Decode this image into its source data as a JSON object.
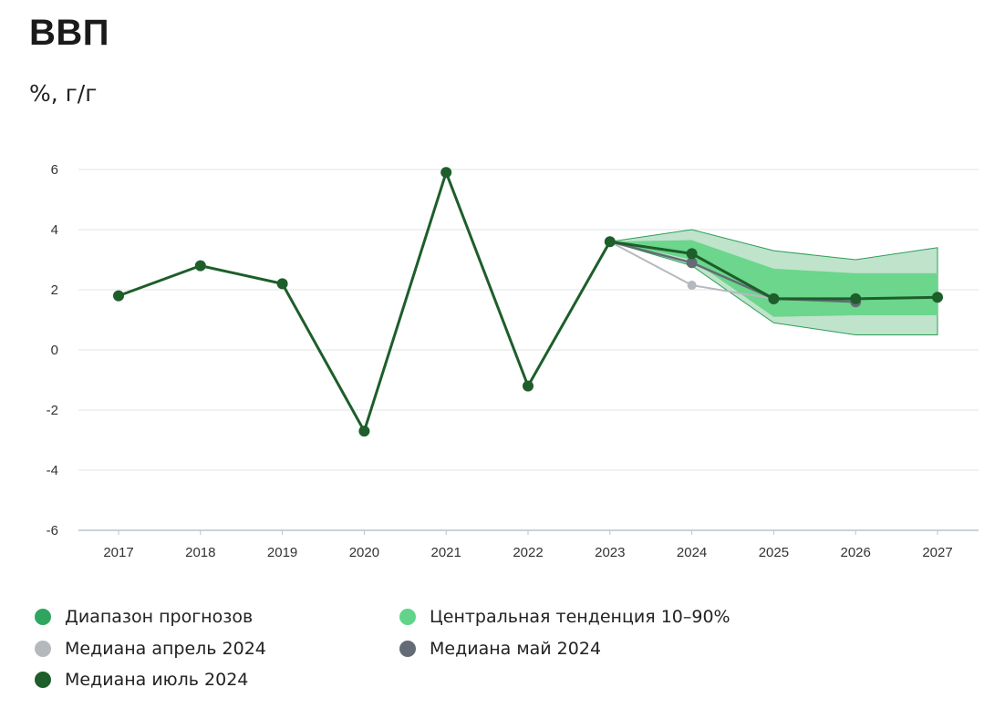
{
  "title": "ВВП",
  "subtitle": "%, г/г",
  "colors": {
    "range_fill": "#bfe3cb",
    "range_stroke": "#2e9e57",
    "central_fill": "#6bd68c",
    "median_april": "#b5b9be",
    "median_may": "#646b75",
    "median_july": "#1d5e2a",
    "grid": "#dfe3e6",
    "axis": "#b9c4cc"
  },
  "legend": [
    {
      "label": "Диапазон прогнозов",
      "color": "#2ea660"
    },
    {
      "label": "Центральная тенденция 10–90%",
      "color": "#62d489"
    },
    {
      "label": "Медиана апрель 2024",
      "color": "#b5b9be"
    },
    {
      "label": "Медиана май 2024",
      "color": "#646b75"
    },
    {
      "label": "Медиана июль 2024",
      "color": "#1d5e2a"
    }
  ],
  "chart_data": {
    "type": "line",
    "title": "ВВП",
    "ylabel": "%, г/г",
    "ylim": [
      -6,
      6
    ],
    "yticks": [
      6,
      4,
      2,
      0,
      -2,
      -4,
      -6
    ],
    "ytick_labels": [
      "6",
      "4",
      "2",
      "0",
      "-2",
      "-4",
      "-6"
    ],
    "x": [
      "2017",
      "2018",
      "2019",
      "2020",
      "2021",
      "2022",
      "2023",
      "2024",
      "2025",
      "2026",
      "2027"
    ],
    "grid": true,
    "legend_position": "bottom",
    "bands": [
      {
        "name": "Диапазон прогнозов",
        "x": [
          "2023",
          "2024",
          "2025",
          "2026",
          "2027"
        ],
        "low": [
          3.6,
          2.8,
          0.9,
          0.5,
          0.5
        ],
        "high": [
          3.6,
          4.0,
          3.3,
          3.0,
          3.4
        ]
      },
      {
        "name": "Центральная тенденция 10–90%",
        "x": [
          "2023",
          "2024",
          "2025",
          "2026",
          "2027"
        ],
        "low": [
          3.6,
          3.0,
          1.1,
          1.15,
          1.15
        ],
        "high": [
          3.6,
          3.65,
          2.7,
          2.55,
          2.55
        ]
      }
    ],
    "series": [
      {
        "name": "Медиана апрель 2024",
        "x": [
          "2023",
          "2024",
          "2025",
          "2026"
        ],
        "values": [
          3.6,
          2.15,
          1.7,
          1.6
        ]
      },
      {
        "name": "Медиана май 2024",
        "x": [
          "2023",
          "2024",
          "2025",
          "2026"
        ],
        "values": [
          3.6,
          2.9,
          1.7,
          1.6
        ]
      },
      {
        "name": "Медиана июль 2024",
        "x": [
          "2017",
          "2018",
          "2019",
          "2020",
          "2021",
          "2022",
          "2023",
          "2024",
          "2025",
          "2026",
          "2027"
        ],
        "values": [
          1.8,
          2.8,
          2.2,
          -2.7,
          5.9,
          -1.2,
          3.6,
          3.2,
          1.7,
          1.7,
          1.75
        ]
      }
    ]
  }
}
